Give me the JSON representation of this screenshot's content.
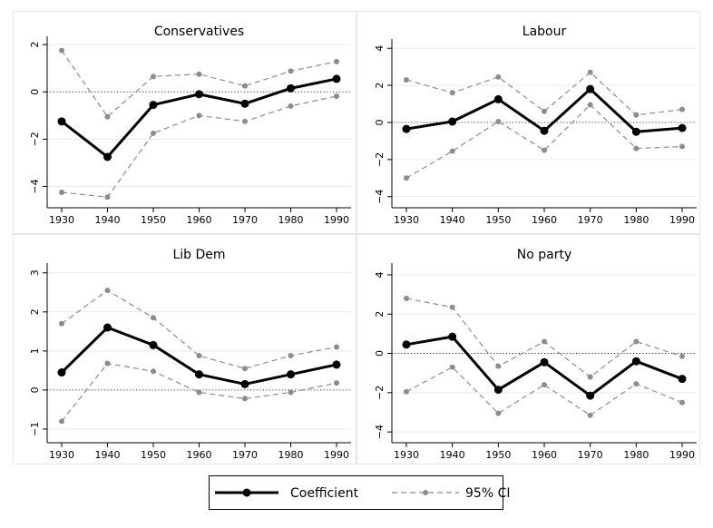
{
  "chart_data": [
    {
      "type": "line",
      "title": "Conservatives",
      "x": [
        1930,
        1940,
        1950,
        1960,
        1970,
        1980,
        1990
      ],
      "series": [
        {
          "name": "Coefficient",
          "values": [
            -1.25,
            -2.75,
            -0.55,
            -0.1,
            -0.5,
            0.15,
            0.55
          ]
        },
        {
          "name": "95% CI",
          "values": [
            1.75,
            -1.05,
            0.65,
            0.75,
            0.25,
            0.88,
            1.28
          ]
        },
        {
          "name": "95% CI",
          "values": [
            -4.25,
            -4.45,
            -1.75,
            -1.0,
            -1.25,
            -0.6,
            -0.18
          ]
        }
      ],
      "yticks": [
        -4,
        -2,
        0,
        2
      ],
      "ylim": [
        -4.9,
        2.35
      ],
      "reference_line": 0
    },
    {
      "type": "line",
      "title": "Labour",
      "x": [
        1930,
        1940,
        1950,
        1960,
        1970,
        1980,
        1990
      ],
      "series": [
        {
          "name": "Coefficient",
          "values": [
            -0.35,
            0.05,
            1.25,
            -0.45,
            1.8,
            -0.5,
            -0.3
          ]
        },
        {
          "name": "95% CI",
          "values": [
            2.3,
            1.6,
            2.45,
            0.6,
            2.7,
            0.4,
            0.7
          ]
        },
        {
          "name": "95% CI",
          "values": [
            -3.0,
            -1.55,
            0.05,
            -1.5,
            0.95,
            -1.4,
            -1.3
          ]
        }
      ],
      "yticks": [
        -4,
        -2,
        0,
        2,
        4
      ],
      "ylim": [
        -4.6,
        4.5
      ],
      "reference_line": 0
    },
    {
      "type": "line",
      "title": "Lib Dem",
      "x": [
        1930,
        1940,
        1950,
        1960,
        1970,
        1980,
        1990
      ],
      "series": [
        {
          "name": "Coefficient",
          "values": [
            0.45,
            1.6,
            1.15,
            0.4,
            0.15,
            0.4,
            0.65
          ]
        },
        {
          "name": "95% CI",
          "values": [
            1.7,
            2.55,
            1.85,
            0.88,
            0.55,
            0.88,
            1.1
          ]
        },
        {
          "name": "95% CI",
          "values": [
            -0.8,
            0.68,
            0.48,
            -0.06,
            -0.22,
            -0.06,
            0.18
          ]
        }
      ],
      "yticks": [
        -1,
        0,
        1,
        2,
        3
      ],
      "ylim": [
        -1.35,
        3.25
      ],
      "reference_line": 0
    },
    {
      "type": "line",
      "title": "No party",
      "x": [
        1930,
        1940,
        1950,
        1960,
        1970,
        1980,
        1990
      ],
      "series": [
        {
          "name": "Coefficient",
          "values": [
            0.45,
            0.85,
            -1.85,
            -0.45,
            -2.15,
            -0.4,
            -1.3
          ]
        },
        {
          "name": "95% CI",
          "values": [
            2.8,
            2.35,
            -0.65,
            0.6,
            -1.2,
            0.6,
            -0.15
          ]
        },
        {
          "name": "95% CI",
          "values": [
            -1.95,
            -0.7,
            -3.05,
            -1.6,
            -3.15,
            -1.55,
            -2.5
          ]
        }
      ],
      "yticks": [
        -4,
        -2,
        0,
        2,
        4
      ],
      "ylim": [
        -4.55,
        4.6
      ],
      "reference_line": 0
    }
  ],
  "legend": {
    "items": [
      {
        "label": "Coefficient",
        "style": "solid",
        "color": "#000000"
      },
      {
        "label": "95% CI",
        "style": "dashed",
        "color": "#8c8c8c"
      }
    ]
  },
  "colors": {
    "coefficient": "#000000",
    "ci": "#8c8c8c",
    "panel_border": "#e6e6e6",
    "grid": "#eaeaea"
  }
}
